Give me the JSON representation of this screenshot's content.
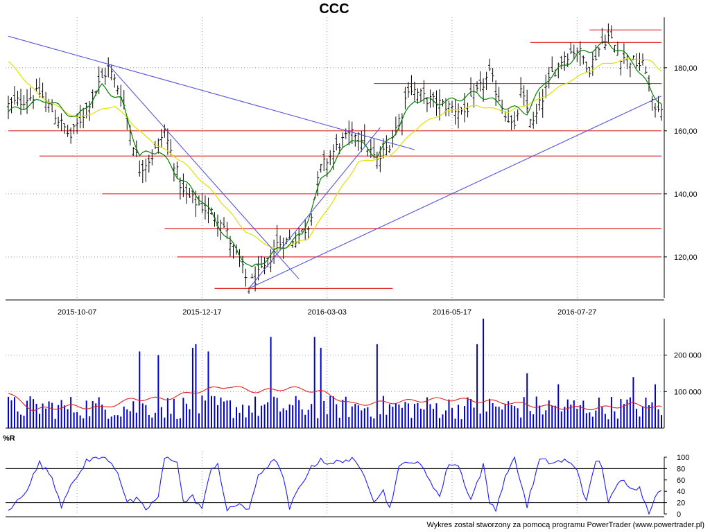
{
  "chart_data": {
    "type": "candlestick",
    "title": "CCC",
    "footer": "Wykres został stworzony za pomocą programu PowerTrader (www.powertrader.pl)",
    "colors": {
      "bars": "#000000",
      "short_ma": "#008000",
      "long_ma": "#e0e000",
      "trendlines": "#5555dd",
      "levels": "#e03030",
      "volume_bars": "#0000cc",
      "volume_ma": "#e02020",
      "williams_r": "#1a1aff",
      "grid": "#999999"
    },
    "price_panel": {
      "ylim": [
        107,
        196
      ],
      "y_ticks": [
        "120,00",
        "140,00",
        "160,00",
        "180,00"
      ],
      "y_tick_values": [
        120,
        140,
        160,
        180
      ],
      "x_tick_labels": [
        "2015-10-07",
        "2015-12-17",
        "2016-03-03",
        "2016-05-17",
        "2016-07-27"
      ],
      "x_tick_index": [
        22,
        62,
        102,
        142,
        182
      ],
      "close_keypoints": [
        [
          0,
          168
        ],
        [
          10,
          172
        ],
        [
          20,
          158
        ],
        [
          28,
          173
        ],
        [
          32,
          180
        ],
        [
          36,
          172
        ],
        [
          42,
          148
        ],
        [
          46,
          152
        ],
        [
          50,
          160
        ],
        [
          56,
          140
        ],
        [
          62,
          136
        ],
        [
          68,
          132
        ],
        [
          74,
          118
        ],
        [
          77,
          111
        ],
        [
          82,
          116
        ],
        [
          86,
          124
        ],
        [
          92,
          126
        ],
        [
          96,
          130
        ],
        [
          100,
          148
        ],
        [
          106,
          156
        ],
        [
          112,
          160
        ],
        [
          118,
          150
        ],
        [
          122,
          156
        ],
        [
          126,
          166
        ],
        [
          128,
          174
        ],
        [
          134,
          170
        ],
        [
          140,
          168
        ],
        [
          146,
          166
        ],
        [
          150,
          172
        ],
        [
          154,
          178
        ],
        [
          158,
          168
        ],
        [
          162,
          160
        ],
        [
          164,
          172
        ],
        [
          168,
          162
        ],
        [
          170,
          168
        ],
        [
          174,
          178
        ],
        [
          178,
          184
        ],
        [
          182,
          186
        ],
        [
          186,
          180
        ],
        [
          190,
          188
        ],
        [
          192,
          190
        ],
        [
          196,
          184
        ],
        [
          200,
          182
        ],
        [
          204,
          180
        ],
        [
          206,
          168
        ],
        [
          209,
          168
        ]
      ],
      "short_ma_keypoints": [
        [
          0,
          166
        ],
        [
          12,
          170
        ],
        [
          22,
          164
        ],
        [
          30,
          174
        ],
        [
          36,
          170
        ],
        [
          42,
          152
        ],
        [
          48,
          154
        ],
        [
          54,
          146
        ],
        [
          62,
          138
        ],
        [
          70,
          126
        ],
        [
          78,
          116
        ],
        [
          86,
          122
        ],
        [
          94,
          127
        ],
        [
          100,
          144
        ],
        [
          110,
          158
        ],
        [
          118,
          152
        ],
        [
          124,
          160
        ],
        [
          130,
          170
        ],
        [
          140,
          169
        ],
        [
          150,
          172
        ],
        [
          158,
          168
        ],
        [
          166,
          166
        ],
        [
          172,
          176
        ],
        [
          182,
          184
        ],
        [
          192,
          188
        ],
        [
          200,
          182
        ],
        [
          206,
          172
        ],
        [
          209,
          169
        ]
      ],
      "long_ma_keypoints": [
        [
          0,
          182
        ],
        [
          10,
          171
        ],
        [
          22,
          164
        ],
        [
          34,
          168
        ],
        [
          44,
          158
        ],
        [
          56,
          150
        ],
        [
          66,
          140
        ],
        [
          76,
          128
        ],
        [
          86,
          122
        ],
        [
          96,
          126
        ],
        [
          104,
          138
        ],
        [
          112,
          150
        ],
        [
          122,
          152
        ],
        [
          132,
          162
        ],
        [
          140,
          166
        ],
        [
          150,
          168
        ],
        [
          160,
          166
        ],
        [
          170,
          170
        ],
        [
          180,
          176
        ],
        [
          190,
          181
        ],
        [
          200,
          183
        ],
        [
          206,
          182
        ],
        [
          209,
          179
        ]
      ],
      "trendlines": [
        [
          [
            0,
            190
          ],
          [
            130,
            154
          ]
        ],
        [
          [
            32,
            181
          ],
          [
            93,
            113
          ]
        ],
        [
          [
            77,
            110
          ],
          [
            119,
            161
          ]
        ],
        [
          [
            77,
            110
          ],
          [
            209,
            171
          ]
        ]
      ],
      "levels": [
        [
          186,
          209,
          192
        ],
        [
          167,
          209,
          188
        ],
        [
          117,
          209,
          175
        ],
        [
          0,
          209,
          160
        ],
        [
          10,
          209,
          152
        ],
        [
          30,
          209,
          140
        ],
        [
          50,
          209,
          129
        ],
        [
          54,
          209,
          120
        ],
        [
          66,
          123,
          110
        ]
      ]
    },
    "volume_panel": {
      "ylim": [
        0,
        300000
      ],
      "y_ticks": [
        "100 000",
        "200 000"
      ],
      "y_tick_values": [
        100000,
        200000
      ],
      "avg_volume": 60000,
      "spikes": [
        [
          42,
          210000
        ],
        [
          48,
          200000
        ],
        [
          59,
          220000
        ],
        [
          60,
          230000
        ],
        [
          64,
          210000
        ],
        [
          84,
          250000
        ],
        [
          98,
          250000
        ],
        [
          100,
          220000
        ],
        [
          118,
          230000
        ],
        [
          150,
          230000
        ],
        [
          152,
          300000
        ],
        [
          166,
          150000
        ],
        [
          176,
          120000
        ],
        [
          200,
          140000
        ],
        [
          207,
          120000
        ]
      ],
      "volume_ma_keypoints": [
        [
          0,
          95000
        ],
        [
          8,
          50000
        ],
        [
          20,
          60000
        ],
        [
          30,
          55000
        ],
        [
          40,
          80000
        ],
        [
          50,
          80000
        ],
        [
          60,
          100000
        ],
        [
          70,
          115000
        ],
        [
          80,
          100000
        ],
        [
          90,
          110000
        ],
        [
          100,
          100000
        ],
        [
          110,
          65000
        ],
        [
          120,
          70000
        ],
        [
          130,
          75000
        ],
        [
          140,
          80000
        ],
        [
          150,
          75000
        ],
        [
          160,
          70000
        ],
        [
          170,
          60000
        ],
        [
          180,
          55000
        ],
        [
          190,
          55000
        ],
        [
          200,
          65000
        ],
        [
          209,
          55000
        ]
      ]
    },
    "williams_panel": {
      "label": "%R",
      "ylim": [
        0,
        100
      ],
      "y_ticks": [
        "0",
        "20",
        "40",
        "60",
        "80",
        "100"
      ],
      "y_tick_values": [
        0,
        20,
        40,
        60,
        80,
        100
      ],
      "reference_lines": [
        20,
        80
      ],
      "keypoints": [
        [
          0,
          3
        ],
        [
          6,
          45
        ],
        [
          10,
          90
        ],
        [
          14,
          65
        ],
        [
          17,
          15
        ],
        [
          20,
          55
        ],
        [
          22,
          60
        ],
        [
          25,
          95
        ],
        [
          28,
          100
        ],
        [
          32,
          97
        ],
        [
          35,
          75
        ],
        [
          38,
          20
        ],
        [
          41,
          25
        ],
        [
          44,
          8
        ],
        [
          48,
          30
        ],
        [
          50,
          98
        ],
        [
          54,
          95
        ],
        [
          56,
          20
        ],
        [
          59,
          30
        ],
        [
          62,
          10
        ],
        [
          65,
          80
        ],
        [
          67,
          90
        ],
        [
          70,
          4
        ],
        [
          74,
          20
        ],
        [
          77,
          4
        ],
        [
          80,
          70
        ],
        [
          83,
          85
        ],
        [
          86,
          95
        ],
        [
          88,
          60
        ],
        [
          90,
          10
        ],
        [
          93,
          45
        ],
        [
          96,
          75
        ],
        [
          100,
          98
        ],
        [
          103,
          85
        ],
        [
          106,
          95
        ],
        [
          110,
          95
        ],
        [
          114,
          70
        ],
        [
          117,
          25
        ],
        [
          120,
          40
        ],
        [
          122,
          10
        ],
        [
          125,
          80
        ],
        [
          128,
          95
        ],
        [
          132,
          85
        ],
        [
          135,
          60
        ],
        [
          138,
          30
        ],
        [
          141,
          90
        ],
        [
          144,
          85
        ],
        [
          148,
          25
        ],
        [
          152,
          85
        ],
        [
          154,
          20
        ],
        [
          156,
          10
        ],
        [
          160,
          80
        ],
        [
          162,
          97
        ],
        [
          164,
          55
        ],
        [
          166,
          15
        ],
        [
          170,
          95
        ],
        [
          174,
          90
        ],
        [
          178,
          94
        ],
        [
          182,
          80
        ],
        [
          185,
          20
        ],
        [
          188,
          95
        ],
        [
          190,
          85
        ],
        [
          192,
          20
        ],
        [
          196,
          60
        ],
        [
          199,
          50
        ],
        [
          202,
          45
        ],
        [
          205,
          3
        ],
        [
          207,
          35
        ],
        [
          209,
          38
        ]
      ]
    }
  }
}
